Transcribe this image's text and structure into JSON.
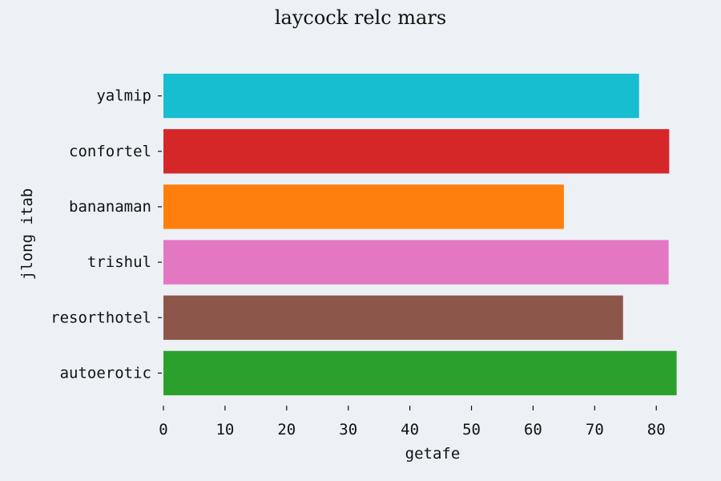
{
  "chart_data": {
    "type": "bar",
    "orientation": "horizontal",
    "title": "laycock relc mars",
    "xlabel": "getafe",
    "ylabel": "jlong itab",
    "categories": [
      "yalmip",
      "confortel",
      "bananaman",
      "trishul",
      "resorthotel",
      "autoerotic"
    ],
    "values": [
      77.2,
      82.1,
      65.0,
      82.0,
      74.6,
      83.3
    ],
    "colors": [
      "#17becf",
      "#d62728",
      "#ff7f0e",
      "#e377c2",
      "#8c564b",
      "#2ca02c"
    ],
    "xlim": [
      0,
      84
    ],
    "xticks": [
      0,
      10,
      20,
      30,
      40,
      50,
      60,
      70,
      80
    ],
    "grid": false,
    "background": "#edf0f5"
  }
}
